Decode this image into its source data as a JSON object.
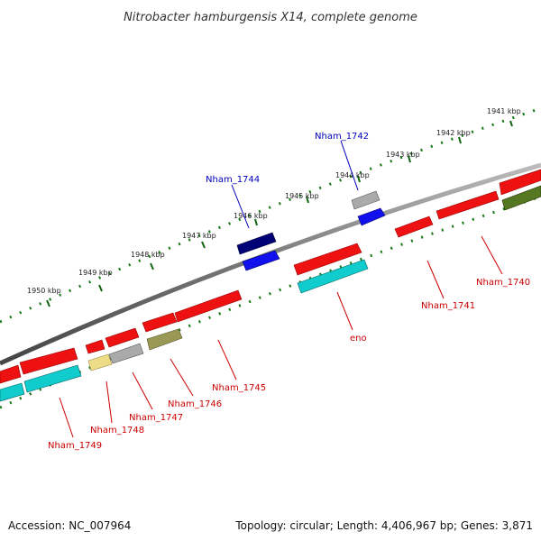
{
  "title": "Nitrobacter hamburgensis X14, complete genome",
  "footer": {
    "accession": "Accession: NC_007964",
    "summary": "Topology: circular; Length: 4,406,967 bp; Genes: 3,871"
  },
  "kbp_labels": [
    "1941 kbp",
    "1942 kbp",
    "1943 kbp",
    "1944 kbp",
    "1945 kbp",
    "1946 kbp",
    "1947 kbp",
    "1948 kbp",
    "1949 kbp",
    "1950 kbp"
  ],
  "gene_labels": [
    {
      "name": "Nham_1740",
      "color": "#cc0000"
    },
    {
      "name": "Nham_1741",
      "color": "#cc0000"
    },
    {
      "name": "eno",
      "color": "#cc0000"
    },
    {
      "name": "Nham_1742",
      "color": "#0000bb"
    },
    {
      "name": "Nham_1744",
      "color": "#0000bb"
    },
    {
      "name": "Nham_1745",
      "color": "#cc0000"
    },
    {
      "name": "Nham_1746",
      "color": "#cc0000"
    },
    {
      "name": "Nham_1747",
      "color": "#cc0000"
    },
    {
      "name": "Nham_1748",
      "color": "#cc0000"
    },
    {
      "name": "Nham_1749",
      "color": "#cc0000"
    }
  ],
  "colors": {
    "cds_forward": "#ee1111",
    "cds_reverse_rna": "#11cccc",
    "cds_navy": "#000077",
    "cds_blue": "#1111ee",
    "cds_grey": "#aaaaaa",
    "cds_olive": "#999955",
    "cds_khaki": "#eedd88",
    "cds_green": "#557722",
    "backbone": "#777777",
    "tick": "#116611"
  }
}
